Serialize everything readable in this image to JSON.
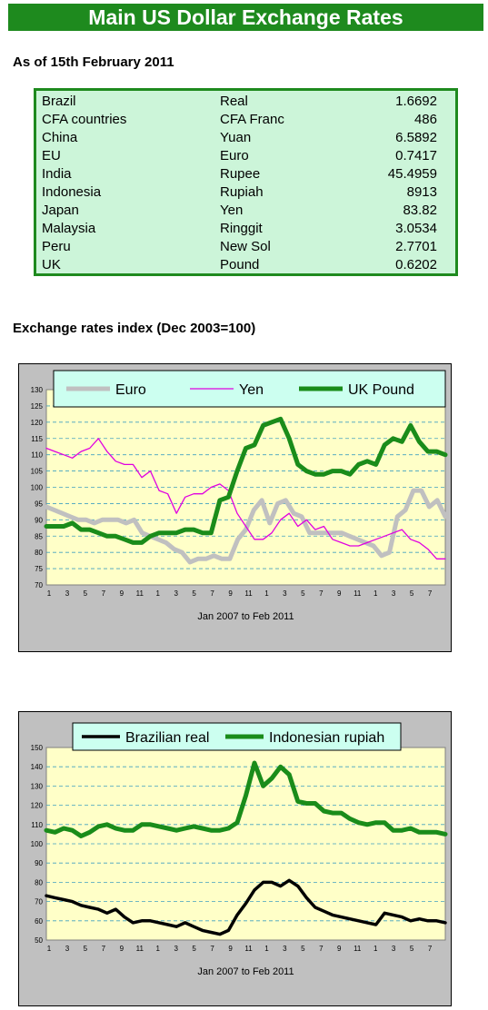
{
  "header": {
    "title": "Main US Dollar Exchange Rates"
  },
  "rates": {
    "as_of": "As of 15th February 2011",
    "rows": [
      {
        "country": "Brazil",
        "currency": "Real",
        "rate": "1.6692"
      },
      {
        "country": "CFA countries",
        "currency": "CFA Franc",
        "rate": "486"
      },
      {
        "country": "China",
        "currency": "Yuan",
        "rate": "6.5892"
      },
      {
        "country": "EU",
        "currency": "Euro",
        "rate": "0.7417"
      },
      {
        "country": "India",
        "currency": "Rupee",
        "rate": "45.4959"
      },
      {
        "country": "Indonesia",
        "currency": "Rupiah",
        "rate": "8913"
      },
      {
        "country": "Japan",
        "currency": "Yen",
        "rate": "83.82"
      },
      {
        "country": "Malaysia",
        "currency": "Ringgit",
        "rate": "3.0534"
      },
      {
        "country": "Peru",
        "currency": "New Sol",
        "rate": "2.7701"
      },
      {
        "country": "UK",
        "currency": "Pound",
        "rate": "0.6202"
      }
    ]
  },
  "index_section": {
    "title": "Exchange rates index (Dec 2003=100)"
  },
  "chart_data": [
    {
      "type": "line",
      "title": "",
      "xlabel": "Jan 2007 to Feb 2011",
      "ylabel": "",
      "ylim": [
        70,
        130
      ],
      "yticks": [
        70,
        75,
        80,
        85,
        90,
        95,
        100,
        105,
        110,
        115,
        120,
        125,
        130
      ],
      "xticks": [
        "1",
        "3",
        "5",
        "7",
        "9",
        "11",
        "1",
        "3",
        "5",
        "7",
        "9",
        "11",
        "1",
        "3",
        "5",
        "7",
        "9",
        "11",
        "1",
        "3",
        "5",
        "7"
      ],
      "grid": true,
      "legend": "top",
      "series": [
        {
          "name": "Euro",
          "color": "#c0c0c0",
          "width": 5,
          "values": [
            94,
            93,
            92,
            91,
            90,
            90,
            89,
            90,
            90,
            90,
            89,
            90,
            86,
            85,
            84,
            83,
            81,
            80,
            77,
            78,
            78,
            79,
            78,
            78,
            84,
            87,
            93,
            96,
            89,
            95,
            96,
            92,
            91,
            86,
            86,
            86,
            86,
            86,
            85,
            84,
            83,
            82,
            79,
            80,
            91,
            93,
            99,
            99,
            94,
            96,
            91
          ]
        },
        {
          "name": "Yen",
          "color": "#e000e0",
          "width": 1.3,
          "values": [
            112,
            111,
            110,
            109,
            111,
            112,
            115,
            111,
            108,
            107,
            107,
            103,
            105,
            99,
            98,
            92,
            97,
            98,
            98,
            100,
            101,
            99,
            92,
            88,
            84,
            84,
            86,
            90,
            92,
            88,
            90,
            87,
            88,
            84,
            83,
            82,
            82,
            83,
            84,
            85,
            86,
            87,
            84,
            83,
            81,
            78,
            78
          ]
        },
        {
          "name": "UK Pound",
          "color": "#1a8c1a",
          "width": 5,
          "values": [
            88,
            88,
            88,
            89,
            87,
            87,
            86,
            85,
            85,
            84,
            83,
            83,
            85,
            86,
            86,
            86,
            87,
            87,
            86,
            86,
            96,
            97,
            105,
            112,
            113,
            119,
            120,
            121,
            115,
            107,
            105,
            104,
            104,
            105,
            105,
            104,
            107,
            108,
            107,
            113,
            115,
            114,
            119,
            114,
            111,
            111,
            110
          ]
        }
      ]
    },
    {
      "type": "line",
      "title": "",
      "xlabel": "Jan 2007 to Feb 2011",
      "ylabel": "",
      "ylim": [
        50,
        150
      ],
      "yticks": [
        50,
        60,
        70,
        80,
        90,
        100,
        110,
        120,
        130,
        140,
        150
      ],
      "xticks": [
        "1",
        "3",
        "5",
        "7",
        "9",
        "11",
        "1",
        "3",
        "5",
        "7",
        "9",
        "11",
        "1",
        "3",
        "5",
        "7",
        "9",
        "11",
        "1",
        "3",
        "5",
        "7"
      ],
      "grid": true,
      "legend": "top",
      "series": [
        {
          "name": "Brazilian real",
          "color": "#000000",
          "width": 3.5,
          "values": [
            73,
            72,
            71,
            70,
            68,
            67,
            66,
            64,
            66,
            62,
            59,
            60,
            60,
            59,
            58,
            57,
            59,
            57,
            55,
            54,
            53,
            55,
            63,
            69,
            76,
            80,
            80,
            78,
            81,
            78,
            72,
            67,
            65,
            63,
            62,
            61,
            60,
            59,
            58,
            64,
            63,
            62,
            60,
            61,
            60,
            60,
            59
          ]
        },
        {
          "name": "Indonesian rupiah",
          "color": "#1a8c1a",
          "width": 5,
          "values": [
            107,
            106,
            108,
            107,
            104,
            106,
            109,
            110,
            108,
            107,
            107,
            110,
            110,
            109,
            108,
            107,
            108,
            109,
            108,
            107,
            107,
            108,
            111,
            125,
            142,
            130,
            134,
            140,
            136,
            122,
            121,
            121,
            117,
            116,
            116,
            113,
            111,
            110,
            111,
            111,
            107,
            107,
            108,
            106,
            106,
            106,
            105
          ]
        }
      ]
    }
  ]
}
